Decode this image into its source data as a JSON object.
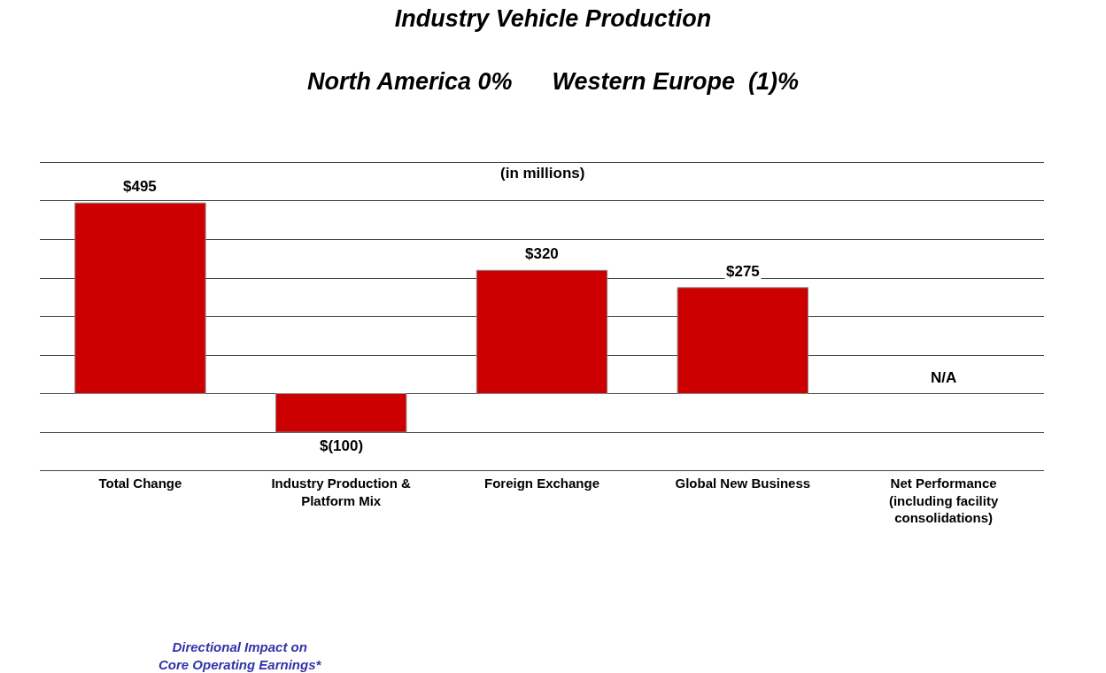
{
  "chart_data": {
    "type": "bar",
    "title": "Industry Vehicle Production",
    "subtitle": "North America 0%      Western Europe  (1)%",
    "categories": [
      "Total Change",
      "Industry Production &\nPlatform Mix",
      "Foreign Exchange",
      "Global New Business",
      "Net Performance\n(including facility\nconsolidations)"
    ],
    "values": [
      495,
      -100,
      320,
      275,
      null
    ],
    "value_labels": [
      "$495",
      "$(100)",
      "$320",
      "$275",
      "N/A"
    ],
    "color": "#cc0000",
    "yticks": [
      {
        "value": -200,
        "label": null
      },
      {
        "value": -100,
        "label": null
      },
      {
        "value": 0,
        "label": null
      },
      {
        "value": 100,
        "label": null
      },
      {
        "value": 200,
        "label": null
      },
      {
        "value": 300,
        "label": null
      },
      {
        "value": 400,
        "label": null
      },
      {
        "value": 500,
        "label": null
      },
      {
        "value": 600,
        "label": null
      }
    ],
    "grid": "y",
    "tick_labels": "x",
    "legend": false,
    "annotations": [
      "(in millions)",
      "Directional Impact on\nCore Operating Earnings*"
    ]
  }
}
